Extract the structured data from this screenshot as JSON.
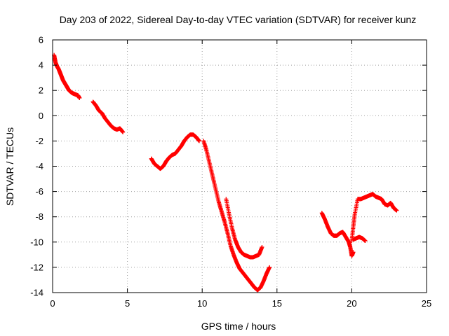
{
  "chart_data": {
    "type": "scatter",
    "title": "Day 203 of 2022, Sidereal Day-to-day VTEC variation (SDTVAR) for receiver kunz",
    "xlabel": "GPS time / hours",
    "ylabel": "SDTVAR / TECUs",
    "xlim": [
      0,
      25
    ],
    "ylim": [
      -14,
      6
    ],
    "xticks": [
      0,
      5,
      10,
      15,
      20,
      25
    ],
    "yticks": [
      -14,
      -12,
      -10,
      -8,
      -6,
      -4,
      -2,
      0,
      2,
      4,
      6
    ],
    "grid": true,
    "marker": "+",
    "series": [
      {
        "name": "arc-1",
        "color": "#ff0000",
        "x": [
          0.1,
          0.2,
          0.3,
          0.4,
          0.5,
          0.6,
          0.7,
          0.8,
          0.9,
          1.0,
          1.1,
          1.2,
          1.3,
          1.4,
          1.5,
          1.6,
          1.7,
          1.8
        ],
        "y": [
          4.8,
          4.2,
          3.9,
          3.7,
          3.4,
          3.1,
          2.8,
          2.6,
          2.4,
          2.2,
          2.0,
          1.9,
          1.8,
          1.75,
          1.7,
          1.65,
          1.6,
          1.4
        ]
      },
      {
        "name": "arc-2",
        "color": "#ff0000",
        "x": [
          2.7,
          2.9,
          3.1,
          3.3,
          3.5,
          3.7,
          3.9,
          4.1,
          4.3,
          4.5,
          4.7
        ],
        "y": [
          1.1,
          0.8,
          0.4,
          0.2,
          -0.2,
          -0.5,
          -0.8,
          -1.0,
          -1.1,
          -1.0,
          -1.3
        ]
      },
      {
        "name": "arc-3",
        "color": "#ff0000",
        "x": [
          6.6,
          6.8,
          7.0,
          7.2,
          7.4,
          7.6,
          7.8,
          8.0,
          8.2,
          8.4,
          8.6,
          8.8,
          9.0,
          9.2,
          9.4,
          9.6,
          9.8
        ],
        "y": [
          -3.4,
          -3.8,
          -4.0,
          -4.2,
          -4.0,
          -3.6,
          -3.3,
          -3.1,
          -3.0,
          -2.7,
          -2.4,
          -2.0,
          -1.7,
          -1.5,
          -1.5,
          -1.7,
          -2.0
        ]
      },
      {
        "name": "arc-4",
        "color": "#ff0000",
        "x": [
          10.1,
          10.3,
          10.5,
          10.7,
          10.9,
          11.1,
          11.3,
          11.5,
          11.7,
          11.9,
          12.1,
          12.3,
          12.5,
          12.7,
          12.9,
          13.1,
          13.3,
          13.5,
          13.7,
          13.9,
          14.1,
          14.3,
          14.5
        ],
        "y": [
          -2.0,
          -2.8,
          -3.8,
          -4.8,
          -5.8,
          -6.8,
          -7.6,
          -8.4,
          -9.3,
          -10.3,
          -11.0,
          -11.6,
          -12.1,
          -12.4,
          -12.7,
          -13.0,
          -13.3,
          -13.6,
          -13.8,
          -13.6,
          -13.1,
          -12.5,
          -12.0
        ]
      },
      {
        "name": "arc-5",
        "color": "#ff0000",
        "x": [
          11.6,
          11.8,
          12.0,
          12.2,
          12.4,
          12.6,
          12.8,
          13.0,
          13.2,
          13.4,
          13.6,
          13.8,
          14.0
        ],
        "y": [
          -6.6,
          -7.8,
          -8.9,
          -9.8,
          -10.4,
          -10.8,
          -11.0,
          -11.1,
          -11.2,
          -11.2,
          -11.1,
          -11.0,
          -10.4
        ]
      },
      {
        "name": "arc-6",
        "color": "#ff0000",
        "x": [
          18.0,
          18.2,
          18.4,
          18.6,
          18.8,
          19.0,
          19.2,
          19.4,
          19.6,
          19.8,
          19.9,
          20.0,
          20.1
        ],
        "y": [
          -7.7,
          -8.2,
          -8.8,
          -9.3,
          -9.5,
          -9.5,
          -9.3,
          -9.2,
          -9.6,
          -10.0,
          -10.4,
          -11.1,
          -10.8
        ]
      },
      {
        "name": "arc-7",
        "color": "#ff0000",
        "x": [
          20.0,
          20.1,
          20.2,
          20.4,
          20.6,
          20.8,
          21.0,
          21.2,
          21.4,
          21.6,
          21.8,
          22.0,
          22.2,
          22.4,
          22.6,
          22.8,
          23.0
        ],
        "y": [
          -9.9,
          -8.8,
          -7.8,
          -6.6,
          -6.6,
          -6.5,
          -6.4,
          -6.3,
          -6.2,
          -6.4,
          -6.5,
          -6.6,
          -7.0,
          -7.1,
          -6.9,
          -7.3,
          -7.5
        ]
      },
      {
        "name": "arc-8",
        "color": "#ff0000",
        "x": [
          20.1,
          20.3,
          20.5,
          20.7,
          20.9
        ],
        "y": [
          -9.8,
          -9.7,
          -9.6,
          -9.7,
          -9.9
        ]
      }
    ]
  }
}
